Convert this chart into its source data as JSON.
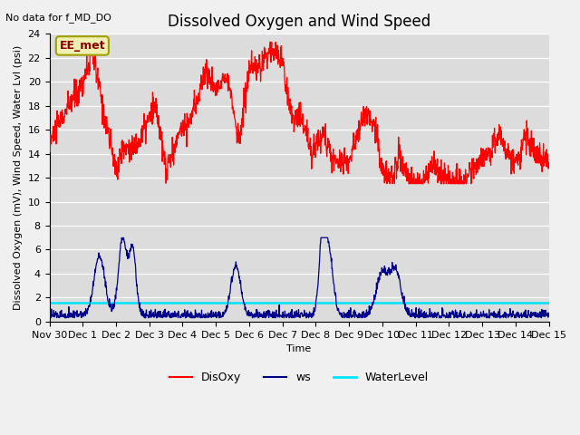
{
  "title": "Dissolved Oxygen and Wind Speed",
  "subtitle": "No data for f_MD_DO",
  "xlabel": "Time",
  "ylabel": "Dissolved Oxygen (mV), Wind Speed, Water Lvl (psi)",
  "annotation": "EE_met",
  "bg_color": "#dcdcdc",
  "fig_color": "#f0f0f0",
  "ylim": [
    0,
    24
  ],
  "xlim": [
    0,
    15
  ],
  "yticks": [
    0,
    2,
    4,
    6,
    8,
    10,
    12,
    14,
    16,
    18,
    20,
    22,
    24
  ],
  "xtick_positions": [
    0,
    1,
    2,
    3,
    4,
    5,
    6,
    7,
    8,
    9,
    10,
    11,
    12,
    13,
    14,
    15
  ],
  "xtick_labels": [
    "Nov 30",
    "Dec 1",
    "Dec 2",
    "Dec 3",
    "Dec 4",
    "Dec 5",
    "Dec 6",
    "Dec 7",
    "Dec 8",
    "Dec 9",
    "Dec 10",
    "Dec 11",
    "Dec 12",
    "Dec 13",
    "Dec 14",
    "Dec 15"
  ],
  "water_level": 1.6,
  "disoxy_color": "#ff0000",
  "ws_color": "#00008b",
  "water_color": "#00e5ff",
  "title_fontsize": 12,
  "label_fontsize": 8,
  "tick_fontsize": 8,
  "legend_fontsize": 9,
  "subtitle_fontsize": 8
}
